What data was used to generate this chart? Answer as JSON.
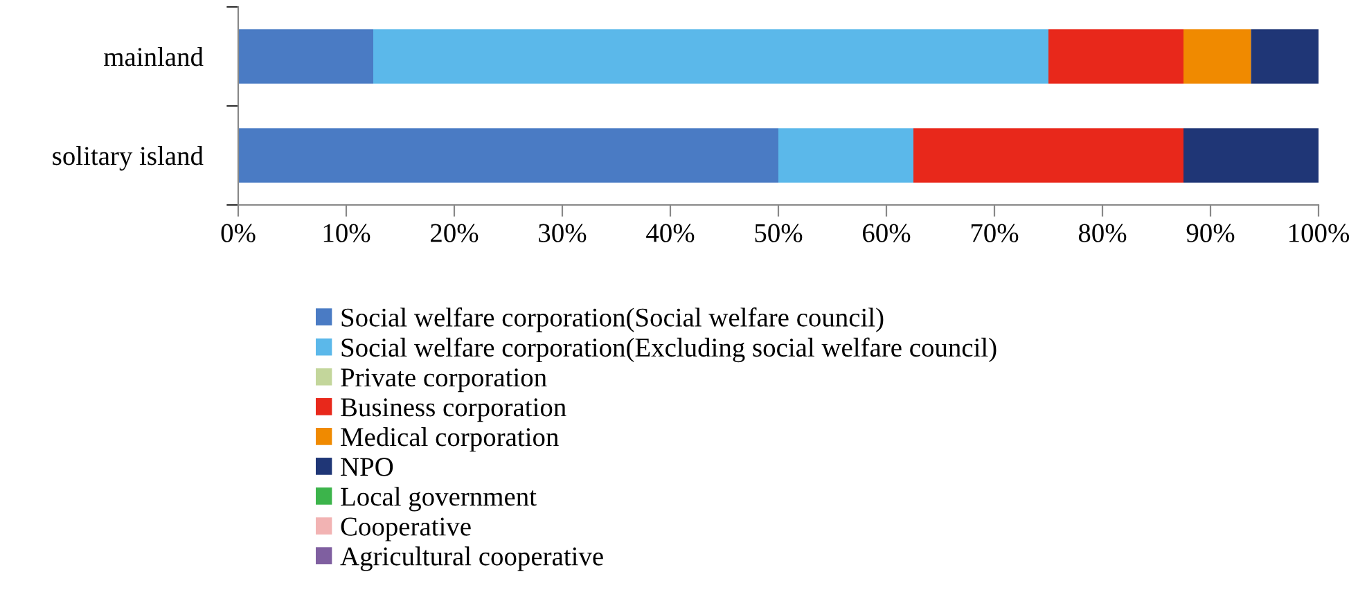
{
  "chart_data": {
    "type": "bar",
    "orientation": "horizontal",
    "stacked": true,
    "categories": [
      "mainland",
      "solitary island"
    ],
    "series": [
      {
        "name": "Social welfare corporation(Social welfare council)",
        "color": "#4a7bc4",
        "values": [
          12.5,
          50
        ]
      },
      {
        "name": "Social welfare corporation(Excluding social welfare council)",
        "color": "#5bb8ea",
        "values": [
          62.5,
          12.5
        ]
      },
      {
        "name": "Private corporation",
        "color": "#c3d69b",
        "values": [
          0,
          0
        ]
      },
      {
        "name": "Business corporation",
        "color": "#e8281b",
        "values": [
          12.5,
          25
        ]
      },
      {
        "name": "Medical corporation",
        "color": "#f08a00",
        "values": [
          6.25,
          0
        ]
      },
      {
        "name": "NPO",
        "color": "#1f3676",
        "values": [
          6.25,
          12.5
        ]
      },
      {
        "name": "Local government",
        "color": "#3cb44b",
        "values": [
          0,
          0
        ]
      },
      {
        "name": "Cooperative",
        "color": "#f2b3b3",
        "values": [
          0,
          0
        ]
      },
      {
        "name": "Agricultural cooperative",
        "color": "#7f5fa0",
        "values": [
          0,
          0
        ]
      }
    ],
    "xlim": [
      0,
      100
    ],
    "xticks": [
      {
        "value": 0,
        "label": "0%"
      },
      {
        "value": 10,
        "label": "10%"
      },
      {
        "value": 20,
        "label": "20%"
      },
      {
        "value": 30,
        "label": "30%"
      },
      {
        "value": 40,
        "label": "40%"
      },
      {
        "value": 50,
        "label": "50%"
      },
      {
        "value": 60,
        "label": "60%"
      },
      {
        "value": 70,
        "label": "70%"
      },
      {
        "value": 80,
        "label": "80%"
      },
      {
        "value": 90,
        "label": "90%"
      },
      {
        "value": 100,
        "label": "100%"
      }
    ],
    "legend": "bottom",
    "grid": false
  }
}
